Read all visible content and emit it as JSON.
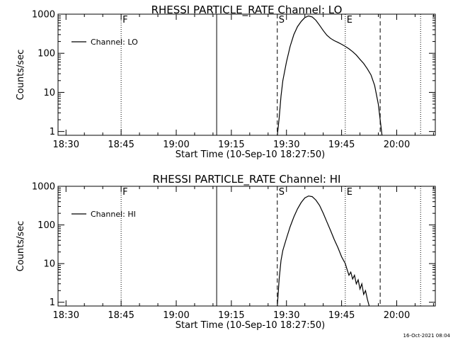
{
  "footer_timestamp": "16-Oct-2021 08:04",
  "chart_data": [
    {
      "type": "line",
      "title": "RHESSI PARTICLE_RATE Channel: LO",
      "xlabel": "Start Time (10-Sep-10 18:27:50)",
      "ylabel": "Counts/sec",
      "y_scale": "log",
      "xlim": [
        "18:27:50",
        "20:10:30"
      ],
      "ylim": [
        0.8,
        1000
      ],
      "x_ticks": [
        "18:30",
        "18:45",
        "19:00",
        "19:15",
        "19:30",
        "19:45",
        "20:00"
      ],
      "y_ticks": [
        "1",
        "10",
        "100",
        "1000"
      ],
      "legend": {
        "entry": "Channel: LO",
        "position": "top-left"
      },
      "markers": [
        {
          "time": "18:45:00",
          "style": "dotted",
          "label": "F"
        },
        {
          "time": "19:11:00",
          "style": "solid",
          "label": ""
        },
        {
          "time": "19:27:30",
          "style": "dashed",
          "label": "S"
        },
        {
          "time": "19:46:00",
          "style": "dotted",
          "label": "E"
        },
        {
          "time": "19:55:30",
          "style": "dashed",
          "label": ""
        },
        {
          "time": "20:06:30",
          "style": "dotted",
          "label": ""
        }
      ],
      "series": [
        {
          "name": "Channel: LO",
          "points": [
            [
              "19:27:30",
              0.8
            ],
            [
              "19:28:00",
              2.2
            ],
            [
              "19:28:30",
              8
            ],
            [
              "19:29:00",
              20
            ],
            [
              "19:30:00",
              60
            ],
            [
              "19:31:00",
              150
            ],
            [
              "19:32:00",
              300
            ],
            [
              "19:33:00",
              480
            ],
            [
              "19:34:00",
              650
            ],
            [
              "19:35:00",
              820
            ],
            [
              "19:36:00",
              900
            ],
            [
              "19:37:00",
              850
            ],
            [
              "19:38:00",
              700
            ],
            [
              "19:39:00",
              520
            ],
            [
              "19:40:00",
              380
            ],
            [
              "19:41:00",
              290
            ],
            [
              "19:42:00",
              240
            ],
            [
              "19:43:00",
              210
            ],
            [
              "19:44:00",
              190
            ],
            [
              "19:45:00",
              170
            ],
            [
              "19:46:00",
              150
            ],
            [
              "19:47:00",
              130
            ],
            [
              "19:48:00",
              110
            ],
            [
              "19:49:00",
              90
            ],
            [
              "19:50:00",
              70
            ],
            [
              "19:51:00",
              55
            ],
            [
              "19:52:00",
              40
            ],
            [
              "19:53:00",
              28
            ],
            [
              "19:54:00",
              15
            ],
            [
              "19:55:00",
              5
            ],
            [
              "19:55:30",
              2
            ],
            [
              "19:56:00",
              0.8
            ]
          ]
        }
      ]
    },
    {
      "type": "line",
      "title": "RHESSI PARTICLE_RATE Channel: HI",
      "xlabel": "Start Time (10-Sep-10 18:27:50)",
      "ylabel": "Counts/sec",
      "y_scale": "log",
      "xlim": [
        "18:27:50",
        "20:10:30"
      ],
      "ylim": [
        0.8,
        1000
      ],
      "x_ticks": [
        "18:30",
        "18:45",
        "19:00",
        "19:15",
        "19:30",
        "19:45",
        "20:00"
      ],
      "y_ticks": [
        "1",
        "10",
        "100",
        "1000"
      ],
      "legend": {
        "entry": "Channel: HI",
        "position": "top-left"
      },
      "markers": [
        {
          "time": "18:45:00",
          "style": "dotted",
          "label": "F"
        },
        {
          "time": "19:11:00",
          "style": "solid",
          "label": ""
        },
        {
          "time": "19:27:30",
          "style": "dashed",
          "label": "S"
        },
        {
          "time": "19:46:00",
          "style": "dotted",
          "label": "E"
        },
        {
          "time": "19:55:30",
          "style": "dashed",
          "label": ""
        },
        {
          "time": "20:06:30",
          "style": "dotted",
          "label": ""
        }
      ],
      "series": [
        {
          "name": "Channel: HI",
          "points": [
            [
              "19:27:30",
              0.8
            ],
            [
              "19:28:00",
              4
            ],
            [
              "19:28:30",
              12
            ],
            [
              "19:29:00",
              22
            ],
            [
              "19:30:00",
              45
            ],
            [
              "19:31:00",
              90
            ],
            [
              "19:32:00",
              160
            ],
            [
              "19:33:00",
              260
            ],
            [
              "19:34:00",
              380
            ],
            [
              "19:35:00",
              500
            ],
            [
              "19:36:00",
              560
            ],
            [
              "19:37:00",
              540
            ],
            [
              "19:38:00",
              440
            ],
            [
              "19:39:00",
              320
            ],
            [
              "19:40:00",
              200
            ],
            [
              "19:41:00",
              120
            ],
            [
              "19:42:00",
              72
            ],
            [
              "19:43:00",
              42
            ],
            [
              "19:44:00",
              26
            ],
            [
              "19:45:00",
              15
            ],
            [
              "19:46:00",
              10
            ],
            [
              "19:46:30",
              7
            ],
            [
              "19:47:00",
              5
            ],
            [
              "19:47:30",
              6
            ],
            [
              "19:48:00",
              4
            ],
            [
              "19:48:30",
              5
            ],
            [
              "19:49:00",
              3
            ],
            [
              "19:49:30",
              3.8
            ],
            [
              "19:50:00",
              2.2
            ],
            [
              "19:50:30",
              3
            ],
            [
              "19:51:00",
              1.6
            ],
            [
              "19:51:30",
              2
            ],
            [
              "19:52:00",
              1.2
            ],
            [
              "19:52:30",
              0.8
            ]
          ]
        }
      ]
    }
  ]
}
